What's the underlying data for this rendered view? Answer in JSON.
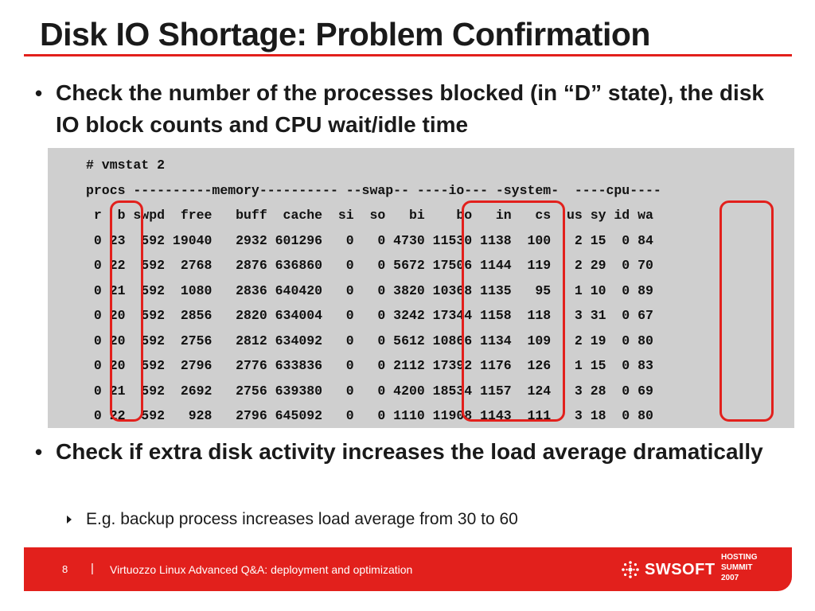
{
  "slide": {
    "title": "Disk IO Shortage: Problem Confirmation",
    "accent_color": "#e2201c"
  },
  "bullets": [
    {
      "text": "Check the number of the processes blocked (in “D” state), the disk IO block counts and CPU wait/idle time"
    },
    {
      "text": "Check if extra disk activity increases the load average dramatically"
    }
  ],
  "sub_bullets": [
    {
      "text": "E.g. backup process increases load average from 30 to 60"
    }
  ],
  "console": {
    "command": "# vmstat 2",
    "group_header": "procs ----------memory---------- --swap-- ----io--- -system-  ----cpu----",
    "columns": [
      "r",
      "b",
      "swpd",
      "free",
      "buff",
      "cache",
      "si",
      "so",
      "bi",
      "bo",
      "in",
      "cs",
      "us",
      "sy",
      "id",
      "wa"
    ],
    "rows": [
      [
        "0",
        "23",
        "592",
        "19040",
        "2932",
        "601296",
        "0",
        "0",
        "4730",
        "11530",
        "1138",
        "100",
        "2",
        "15",
        "0",
        "84"
      ],
      [
        "0",
        "22",
        "592",
        "2768",
        "2876",
        "636860",
        "0",
        "0",
        "5672",
        "17506",
        "1144",
        "119",
        "2",
        "29",
        "0",
        "70"
      ],
      [
        "0",
        "21",
        "592",
        "1080",
        "2836",
        "640420",
        "0",
        "0",
        "3820",
        "10368",
        "1135",
        "95",
        "1",
        "10",
        "0",
        "89"
      ],
      [
        "0",
        "20",
        "592",
        "2856",
        "2820",
        "634004",
        "0",
        "0",
        "3242",
        "17344",
        "1158",
        "118",
        "3",
        "31",
        "0",
        "67"
      ],
      [
        "0",
        "20",
        "592",
        "2756",
        "2812",
        "634092",
        "0",
        "0",
        "5612",
        "10866",
        "1134",
        "109",
        "2",
        "19",
        "0",
        "80"
      ],
      [
        "0",
        "20",
        "592",
        "2796",
        "2776",
        "633836",
        "0",
        "0",
        "2112",
        "17392",
        "1176",
        "126",
        "1",
        "15",
        "0",
        "83"
      ],
      [
        "0",
        "21",
        "592",
        "2692",
        "2756",
        "639380",
        "0",
        "0",
        "4200",
        "18534",
        "1157",
        "124",
        "3",
        "28",
        "0",
        "69"
      ],
      [
        "0",
        "22",
        "592",
        "928",
        "2796",
        "645092",
        "0",
        "0",
        "1110",
        "11908",
        "1143",
        "111",
        "3",
        "18",
        "0",
        "80"
      ]
    ]
  },
  "footer": {
    "page_number": "8",
    "separator": "|",
    "title": "Virtuozzo Linux Advanced Q&A: deployment and optimization",
    "logo_text": "SWSOFT",
    "logo_icon": "swsoft-logo-icon",
    "event": [
      "HOSTING",
      "SUMMIT",
      "2007"
    ]
  }
}
